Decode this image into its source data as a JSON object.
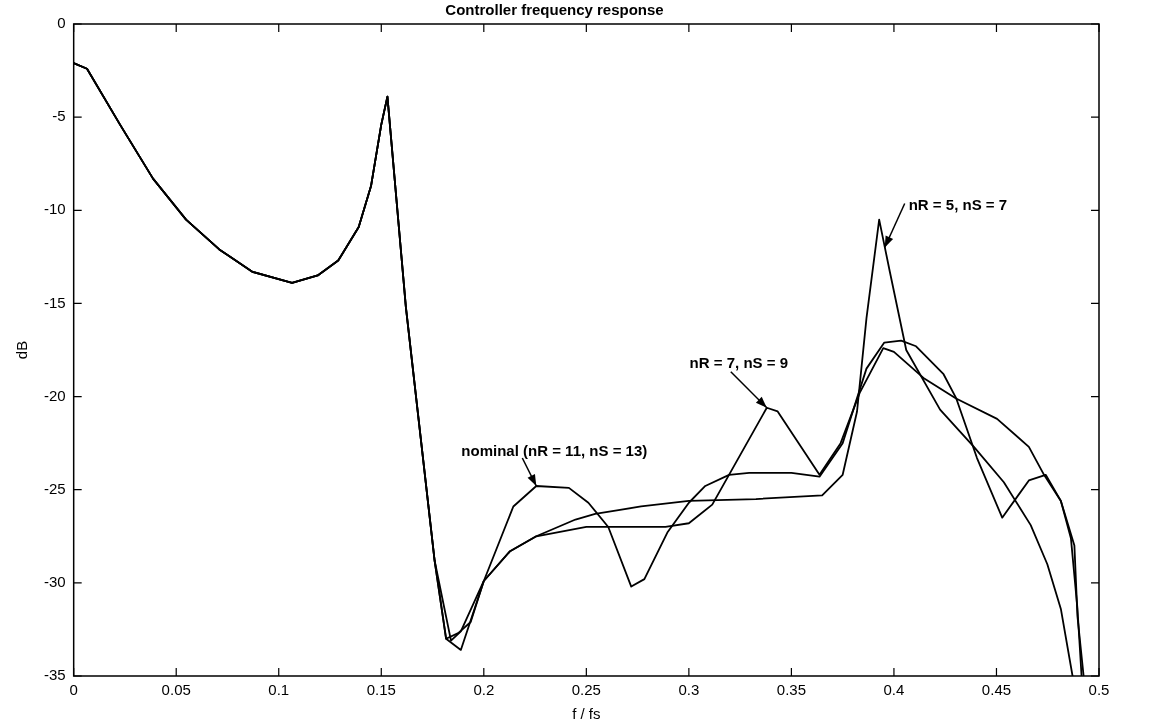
{
  "chart_data": {
    "type": "line",
    "title": "Controller frequency response",
    "xlabel": "f / fs",
    "ylabel": "dB",
    "xlim": [
      0,
      0.5
    ],
    "xticks": [
      0,
      0.05,
      0.1,
      0.15,
      0.2,
      0.25,
      0.3,
      0.35,
      0.4,
      0.45,
      0.5
    ],
    "ylim": [
      -35,
      0
    ],
    "yticks": [
      -35,
      -30,
      -25,
      -20,
      -15,
      -10,
      -5,
      0
    ],
    "grid": false,
    "legend": false,
    "marker": "none",
    "line_style": "solid",
    "series": [
      {
        "color": "#000000",
        "x": [
          0,
          0.0065,
          0.0226,
          0.0387,
          0.0548,
          0.071,
          0.0871,
          0.1065,
          0.119,
          0.129,
          0.139,
          0.145,
          0.15,
          0.153,
          0.162,
          0.176,
          0.1816,
          0.1875,
          0.1936,
          0.2,
          0.2144,
          0.2256,
          0.2415,
          0.251,
          0.2607,
          0.2719,
          0.2783,
          0.2895,
          0.3,
          0.308,
          0.3196,
          0.3294,
          0.35,
          0.3637,
          0.375,
          0.3866,
          0.3953,
          0.4035,
          0.4108,
          0.4242,
          0.4304,
          0.4405,
          0.4528,
          0.4658,
          0.474,
          0.4814,
          0.4863,
          0.4895,
          0.4915
        ],
        "values": [
          -2.1,
          -2.4,
          -5.4,
          -8.3,
          -10.5,
          -12.1,
          -13.3,
          -13.9,
          -13.5,
          -12.7,
          -10.9,
          -8.7,
          -5.4,
          -3.9,
          -15.2,
          -28.8,
          -33.0,
          -32.7,
          -32.1,
          -29.9,
          -25.9,
          -24.8,
          -24.9,
          -25.7,
          -27.0,
          -30.2,
          -29.8,
          -27.3,
          -25.7,
          -24.8,
          -24.2,
          -24.1,
          -24.1,
          -24.3,
          -22.5,
          -18.5,
          -17.1,
          -17.0,
          -17.3,
          -18.8,
          -20.1,
          -23.3,
          -26.5,
          -24.5,
          -24.2,
          -25.6,
          -27.6,
          -31.4,
          -35
        ]
      },
      {
        "color": "#000000",
        "x": [
          0,
          0.0065,
          0.0226,
          0.0387,
          0.0548,
          0.071,
          0.0871,
          0.1065,
          0.119,
          0.129,
          0.139,
          0.145,
          0.15,
          0.153,
          0.162,
          0.176,
          0.1816,
          0.1888,
          0.2,
          0.2128,
          0.2256,
          0.25,
          0.27,
          0.2886,
          0.3,
          0.3114,
          0.338,
          0.3433,
          0.3637,
          0.374,
          0.3833,
          0.3948,
          0.4,
          0.4144,
          0.4303,
          0.4503,
          0.4658,
          0.4732,
          0.4814,
          0.488,
          0.4895,
          0.4925
        ],
        "values": [
          -2.1,
          -2.4,
          -5.4,
          -8.3,
          -10.5,
          -12.1,
          -13.3,
          -13.9,
          -13.5,
          -12.7,
          -10.9,
          -8.7,
          -5.4,
          -3.9,
          -15.2,
          -28.8,
          -33.0,
          -33.6,
          -29.9,
          -28.3,
          -27.5,
          -27.0,
          -27.0,
          -27.0,
          -26.8,
          -25.8,
          -20.6,
          -20.8,
          -24.2,
          -22.5,
          -19.8,
          -17.4,
          -17.6,
          -19.0,
          -20.1,
          -21.2,
          -22.7,
          -24.2,
          -25.6,
          -28.0,
          -31.8,
          -35
        ]
      },
      {
        "color": "#000000",
        "x": [
          0,
          0.0065,
          0.0226,
          0.0387,
          0.0548,
          0.071,
          0.0871,
          0.1065,
          0.119,
          0.129,
          0.139,
          0.145,
          0.15,
          0.153,
          0.162,
          0.176,
          0.184,
          0.1888,
          0.2,
          0.2128,
          0.2256,
          0.2447,
          0.2543,
          0.2767,
          0.3,
          0.3327,
          0.365,
          0.375,
          0.382,
          0.3866,
          0.3928,
          0.398,
          0.406,
          0.4225,
          0.439,
          0.4536,
          0.4667,
          0.4748,
          0.4814,
          0.4871
        ],
        "values": [
          -2.1,
          -2.4,
          -5.4,
          -8.3,
          -10.5,
          -12.1,
          -13.3,
          -13.9,
          -13.5,
          -12.7,
          -10.9,
          -8.7,
          -5.4,
          -3.9,
          -15.2,
          -28.8,
          -33.1,
          -32.6,
          -29.9,
          -28.3,
          -27.5,
          -26.6,
          -26.3,
          -25.9,
          -25.6,
          -25.5,
          -25.3,
          -24.2,
          -20.8,
          -15.8,
          -10.5,
          -13.3,
          -17.5,
          -20.7,
          -22.7,
          -24.6,
          -26.9,
          -29.0,
          -31.4,
          -35
        ]
      }
    ],
    "annotations": [
      {
        "text": "nominal (nR = 11, nS = 13)",
        "x": 0.2256,
        "y": -24.8
      },
      {
        "text": "nR = 7, nS = 9",
        "x": 0.338,
        "y": -20.6
      },
      {
        "text": "nR = 5, nS = 7",
        "x": 0.3955,
        "y": -12.0
      }
    ]
  }
}
